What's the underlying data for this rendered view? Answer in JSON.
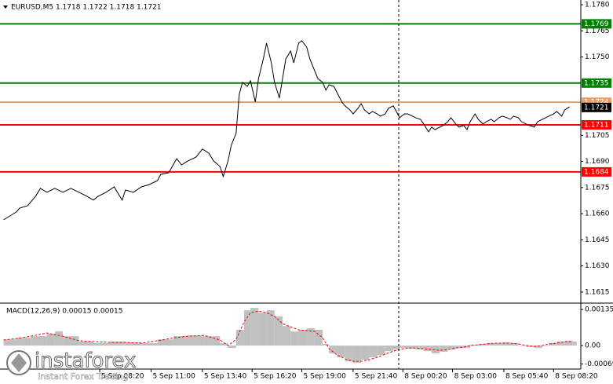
{
  "chart_data": [
    {
      "type": "line",
      "title": "EURUSD,M5  1.1718 1.1722 1.1718 1.1721",
      "color": "#000000",
      "x": [
        6,
        10,
        14,
        16,
        21,
        26,
        29,
        33,
        38,
        43,
        48,
        53,
        58,
        62,
        65,
        70,
        75,
        77,
        80,
        82,
        87,
        92,
        97,
        102,
        104,
        109,
        114,
        117,
        121,
        126,
        130,
        134,
        137,
        141,
        143,
        146,
        148,
        151,
        153,
        155,
        158,
        160,
        163,
        165,
        168,
        170,
        173,
        175,
        178,
        180,
        182,
        185,
        187,
        190,
        192,
        195,
        197,
        200,
        202,
        205,
        207,
        209,
        212,
        214,
        217,
        219,
        222,
        224,
        227,
        229,
        231,
        234,
        236,
        239,
        241,
        244,
        246,
        249,
        251,
        253,
        256,
        258,
        261,
        263,
        266,
        268,
        271,
        273,
        275,
        278,
        280,
        283,
        285,
        288,
        290,
        293,
        295,
        297,
        300,
        302,
        305,
        307,
        310,
        312,
        315,
        317,
        320,
        322,
        324,
        327,
        329,
        332,
        334,
        337,
        339,
        342,
        344,
        346,
        349,
        351,
        354,
        356,
        359
      ],
      "values": [
        1.16565,
        1.16587,
        1.1661,
        1.16632,
        1.16646,
        1.167,
        1.16745,
        1.16723,
        1.16745,
        1.16723,
        1.16745,
        1.16723,
        1.167,
        1.16678,
        1.167,
        1.16723,
        1.16754,
        1.16723,
        1.16678,
        1.16736,
        1.16723,
        1.16754,
        1.16768,
        1.1679,
        1.16826,
        1.16835,
        1.16916,
        1.1688,
        1.16903,
        1.16925,
        1.16971,
        1.16948,
        1.16903,
        1.16871,
        1.16813,
        1.16903,
        1.16993,
        1.17061,
        1.17286,
        1.17354,
        1.17331,
        1.17363,
        1.17241,
        1.17376,
        1.17489,
        1.17579,
        1.17466,
        1.17354,
        1.17264,
        1.17376,
        1.17489,
        1.17534,
        1.17466,
        1.17579,
        1.17593,
        1.17557,
        1.17489,
        1.17421,
        1.17376,
        1.17354,
        1.17309,
        1.1734,
        1.17331,
        1.17295,
        1.17241,
        1.17219,
        1.17196,
        1.17173,
        1.17205,
        1.17232,
        1.17196,
        1.17173,
        1.17187,
        1.17173,
        1.1716,
        1.17173,
        1.17205,
        1.17219,
        1.17187,
        1.17151,
        1.17173,
        1.17173,
        1.1716,
        1.17151,
        1.17142,
        1.17115,
        1.1707,
        1.17097,
        1.17083,
        1.17097,
        1.17106,
        1.17128,
        1.17151,
        1.17115,
        1.17097,
        1.17106,
        1.17083,
        1.17128,
        1.17173,
        1.17142,
        1.17115,
        1.17128,
        1.17142,
        1.17128,
        1.17151,
        1.1716,
        1.17151,
        1.17142,
        1.1716,
        1.17151,
        1.17128,
        1.17115,
        1.17106,
        1.17097,
        1.17128,
        1.17142,
        1.17151,
        1.1716,
        1.17173,
        1.17187,
        1.1716,
        1.17196,
        1.17214
      ],
      "xlim": [
        3.8,
        365
      ],
      "ylim": [
        1.16091,
        1.17827
      ],
      "yticks": [
        {
          "value": 1.178,
          "label": "1.1780"
        },
        1.1765,
        {
          "value": 1.175,
          "label": "1.1750"
        },
        1.1705,
        {
          "value": 1.169,
          "label": "1.1690"
        },
        1.1675,
        {
          "value": 1.166,
          "label": "1.1660"
        },
        1.1645,
        {
          "value": 1.163,
          "label": "1.1630"
        },
        1.1615
      ],
      "levels": [
        {
          "value": 1.1769,
          "color": "#008000"
        },
        {
          "value": 1.1735,
          "color": "#008000"
        },
        {
          "value": 1.1724,
          "color": "#e8a06a"
        },
        {
          "value": 1.1711,
          "color": "#ff0000"
        },
        {
          "value": 1.1684,
          "color": "#ff0000"
        }
      ],
      "last_price": 1.1721
    },
    {
      "type": "macd",
      "title": "MACD(12,26,9) 0.00015 0.00015",
      "x": [
        6,
        14,
        23,
        33,
        38,
        43,
        53,
        62,
        72,
        82,
        92,
        102,
        112,
        121,
        131,
        141,
        146,
        151,
        156,
        160,
        165,
        170,
        175,
        180,
        185,
        190,
        195,
        200,
        205,
        209,
        214,
        219,
        224,
        229,
        234,
        239,
        244,
        249,
        253,
        258,
        263,
        268,
        273,
        278,
        283,
        288,
        293,
        297,
        302,
        307,
        312,
        317,
        322,
        327,
        332,
        337,
        342,
        346,
        351,
        356,
        361
      ],
      "histogram": {
        "color": "#c0c0c0",
        "values": [
          0.00023,
          0.00029,
          0.00035,
          0.00044,
          0.00053,
          0.00035,
          0.00015,
          9e-05,
          0.00015,
          0.00012,
          9e-05,
          0.00023,
          0.00035,
          0.00038,
          0.00035,
          9e-05,
          -9e-05,
          0.00059,
          0.00132,
          0.00141,
          0.00123,
          0.00132,
          0.00109,
          0.00073,
          0.00053,
          0.00059,
          0.00065,
          0.00059,
          6e-05,
          -0.00029,
          -0.00044,
          -0.00059,
          -0.00065,
          -0.00053,
          -0.00044,
          -0.00035,
          -0.00021,
          -0.00015,
          -9e-05,
          -0.00012,
          -0.00015,
          -0.00021,
          -0.00029,
          -0.00023,
          -0.00015,
          -9e-05,
          -9e-05,
          3e-05,
          6e-05,
          9e-05,
          9e-05,
          0.00012,
          9e-05,
          0,
          -6e-05,
          -9e-05,
          0,
          9e-05,
          0.00015,
          0.00018,
          0.00015
        ]
      },
      "signal": {
        "color": "#ff0000",
        "values": [
          0.00021,
          0.00026,
          0.00035,
          0.00047,
          0.00041,
          0.00035,
          0.00018,
          0.00015,
          0.00012,
          0.00012,
          9e-05,
          0.00018,
          0.00029,
          0.00035,
          0.00038,
          0.00021,
          0,
          0.00023,
          0.00088,
          0.00123,
          0.00129,
          0.00123,
          0.00109,
          0.00082,
          0.0007,
          0.00059,
          0.00056,
          0.00053,
          0.00029,
          -0.00012,
          -0.00035,
          -0.0005,
          -0.00059,
          -0.00059,
          -0.00053,
          -0.00044,
          -0.00032,
          -0.00021,
          -0.00015,
          -9e-05,
          -9e-05,
          -0.00012,
          -0.00015,
          -0.00018,
          -0.00015,
          -9e-05,
          -6e-05,
          0,
          3e-05,
          6e-05,
          9e-05,
          9e-05,
          9e-05,
          6e-05,
          0,
          -3e-05,
          0,
          6e-05,
          9e-05,
          0.00015,
          0.00015
        ]
      },
      "xlim": [
        3.8,
        365
      ],
      "ylim": [
        -0.00088,
        0.00153
      ],
      "yticks": [
        0.00135,
        {
          "value": 0,
          "label": "0.00"
        },
        -0.00069
      ],
      "xticks": [
        {
          "value": 66,
          "label": "5 Sep 08:20"
        },
        {
          "value": 98,
          "label": "5 Sep 11:00"
        },
        {
          "value": 130,
          "label": "5 Sep 13:40"
        },
        {
          "value": 161,
          "label": "5 Sep 16:20"
        },
        {
          "value": 192,
          "label": "5 Sep 19:00"
        },
        {
          "value": 224,
          "label": "5 Sep 21:40"
        },
        {
          "value": 255,
          "label": "8 Sep 00:20"
        },
        {
          "value": 286,
          "label": "8 Sep 03:00"
        },
        {
          "value": 318,
          "label": "8 Sep 05:40"
        },
        {
          "value": 349,
          "label": "8 Sep 08:20"
        }
      ]
    }
  ],
  "watermark": {
    "brand": "instaforex",
    "tagline": "Instant Forex Trading"
  }
}
